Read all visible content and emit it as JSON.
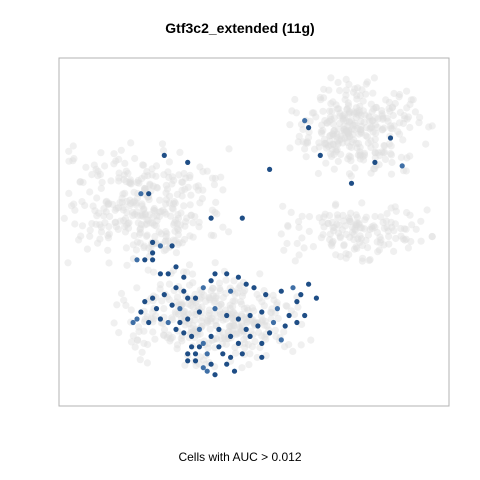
{
  "chart_data": {
    "type": "scatter",
    "title": "Gtf3c2_extended (11g)",
    "xlabel": "Cells with AUC > 0.012",
    "ylabel": "",
    "xlim": [
      0,
      100
    ],
    "ylim": [
      0,
      100
    ],
    "grid": false,
    "legend": "none",
    "colors": {
      "background_cells": "#dddddd",
      "high_auc": "#1f4e86",
      "mid_auc": "#3f6fa6"
    },
    "clusters": [
      {
        "name": "upper-right",
        "cx": 77,
        "cy": 80,
        "rx": 17,
        "ry": 13,
        "n": 300
      },
      {
        "name": "left",
        "cx": 22,
        "cy": 58,
        "rx": 20,
        "ry": 16,
        "n": 320
      },
      {
        "name": "right-middle",
        "cx": 76,
        "cy": 50,
        "rx": 18,
        "ry": 8,
        "n": 150
      },
      {
        "name": "lower-middle",
        "cx": 40,
        "cy": 25,
        "rx": 24,
        "ry": 13,
        "n": 360
      }
    ],
    "highlighted_points": [
      [
        63,
        82
      ],
      [
        64,
        80
      ],
      [
        67,
        72
      ],
      [
        81,
        70
      ],
      [
        85,
        77
      ],
      [
        88,
        69
      ],
      [
        75,
        64
      ],
      [
        27,
        72
      ],
      [
        33,
        70
      ],
      [
        54,
        68
      ],
      [
        21,
        61
      ],
      [
        39,
        54
      ],
      [
        23,
        61
      ],
      [
        47,
        54
      ],
      [
        29,
        46
      ],
      [
        26,
        46
      ],
      [
        24,
        47
      ],
      [
        24,
        42
      ],
      [
        24,
        44
      ],
      [
        22,
        42
      ],
      [
        20,
        42
      ],
      [
        26,
        38
      ],
      [
        28,
        38
      ],
      [
        30,
        40
      ],
      [
        32,
        37
      ],
      [
        37,
        34
      ],
      [
        39,
        36
      ],
      [
        40,
        38
      ],
      [
        43,
        38
      ],
      [
        46,
        37
      ],
      [
        44,
        33
      ],
      [
        48,
        35
      ],
      [
        50,
        34
      ],
      [
        53,
        32
      ],
      [
        57,
        33
      ],
      [
        60,
        34
      ],
      [
        62,
        32
      ],
      [
        64,
        35
      ],
      [
        66,
        31
      ],
      [
        61,
        30
      ],
      [
        56,
        28
      ],
      [
        52,
        27
      ],
      [
        49,
        26
      ],
      [
        46,
        25
      ],
      [
        43,
        26
      ],
      [
        40,
        28
      ],
      [
        36,
        27
      ],
      [
        33,
        25
      ],
      [
        31,
        24
      ],
      [
        34,
        20
      ],
      [
        37,
        18
      ],
      [
        39,
        20
      ],
      [
        41,
        17
      ],
      [
        42,
        15
      ],
      [
        44,
        14
      ],
      [
        38,
        15
      ],
      [
        36,
        17
      ],
      [
        34,
        17
      ],
      [
        33,
        15
      ],
      [
        35,
        13
      ],
      [
        37,
        11
      ],
      [
        39,
        12
      ],
      [
        43,
        12
      ],
      [
        45,
        10
      ],
      [
        40,
        9
      ],
      [
        38,
        10
      ],
      [
        46,
        18
      ],
      [
        49,
        20
      ],
      [
        52,
        18
      ],
      [
        54,
        21
      ],
      [
        57,
        19
      ],
      [
        58,
        23
      ],
      [
        61,
        24
      ],
      [
        63,
        26
      ],
      [
        59,
        26
      ],
      [
        55,
        24
      ],
      [
        51,
        23
      ],
      [
        48,
        22
      ],
      [
        27,
        32
      ],
      [
        29,
        29
      ],
      [
        31,
        28
      ],
      [
        33,
        31
      ],
      [
        35,
        31
      ],
      [
        22,
        30
      ],
      [
        21,
        27
      ],
      [
        20,
        25
      ],
      [
        23,
        24
      ],
      [
        25,
        28
      ],
      [
        24,
        31
      ],
      [
        26,
        25
      ],
      [
        28,
        24
      ],
      [
        30,
        22
      ],
      [
        32,
        21
      ],
      [
        52,
        14
      ],
      [
        47,
        15
      ],
      [
        36,
        22
      ],
      [
        33,
        13
      ],
      [
        35,
        15
      ],
      [
        32,
        33
      ],
      [
        30,
        34
      ],
      [
        19,
        24
      ],
      [
        41,
        22
      ],
      [
        44,
        20
      ]
    ]
  }
}
